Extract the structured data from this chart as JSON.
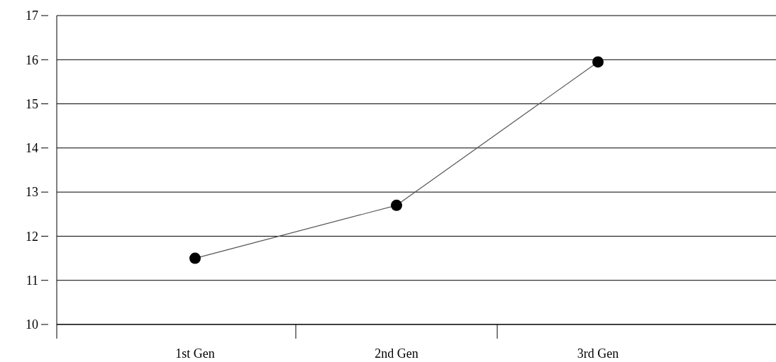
{
  "chart_data": {
    "type": "line",
    "categories": [
      "1st Gen",
      "2nd Gen",
      "3rd Gen"
    ],
    "series": [
      {
        "color": "#000000",
        "values": [
          11.5,
          12.7,
          15.95
        ]
      }
    ],
    "ylim": [
      10,
      17
    ],
    "yticks": [
      10,
      11,
      12,
      13,
      14,
      15,
      16,
      17
    ],
    "grid": "y",
    "marker": "circle",
    "line_style": "solid"
  }
}
